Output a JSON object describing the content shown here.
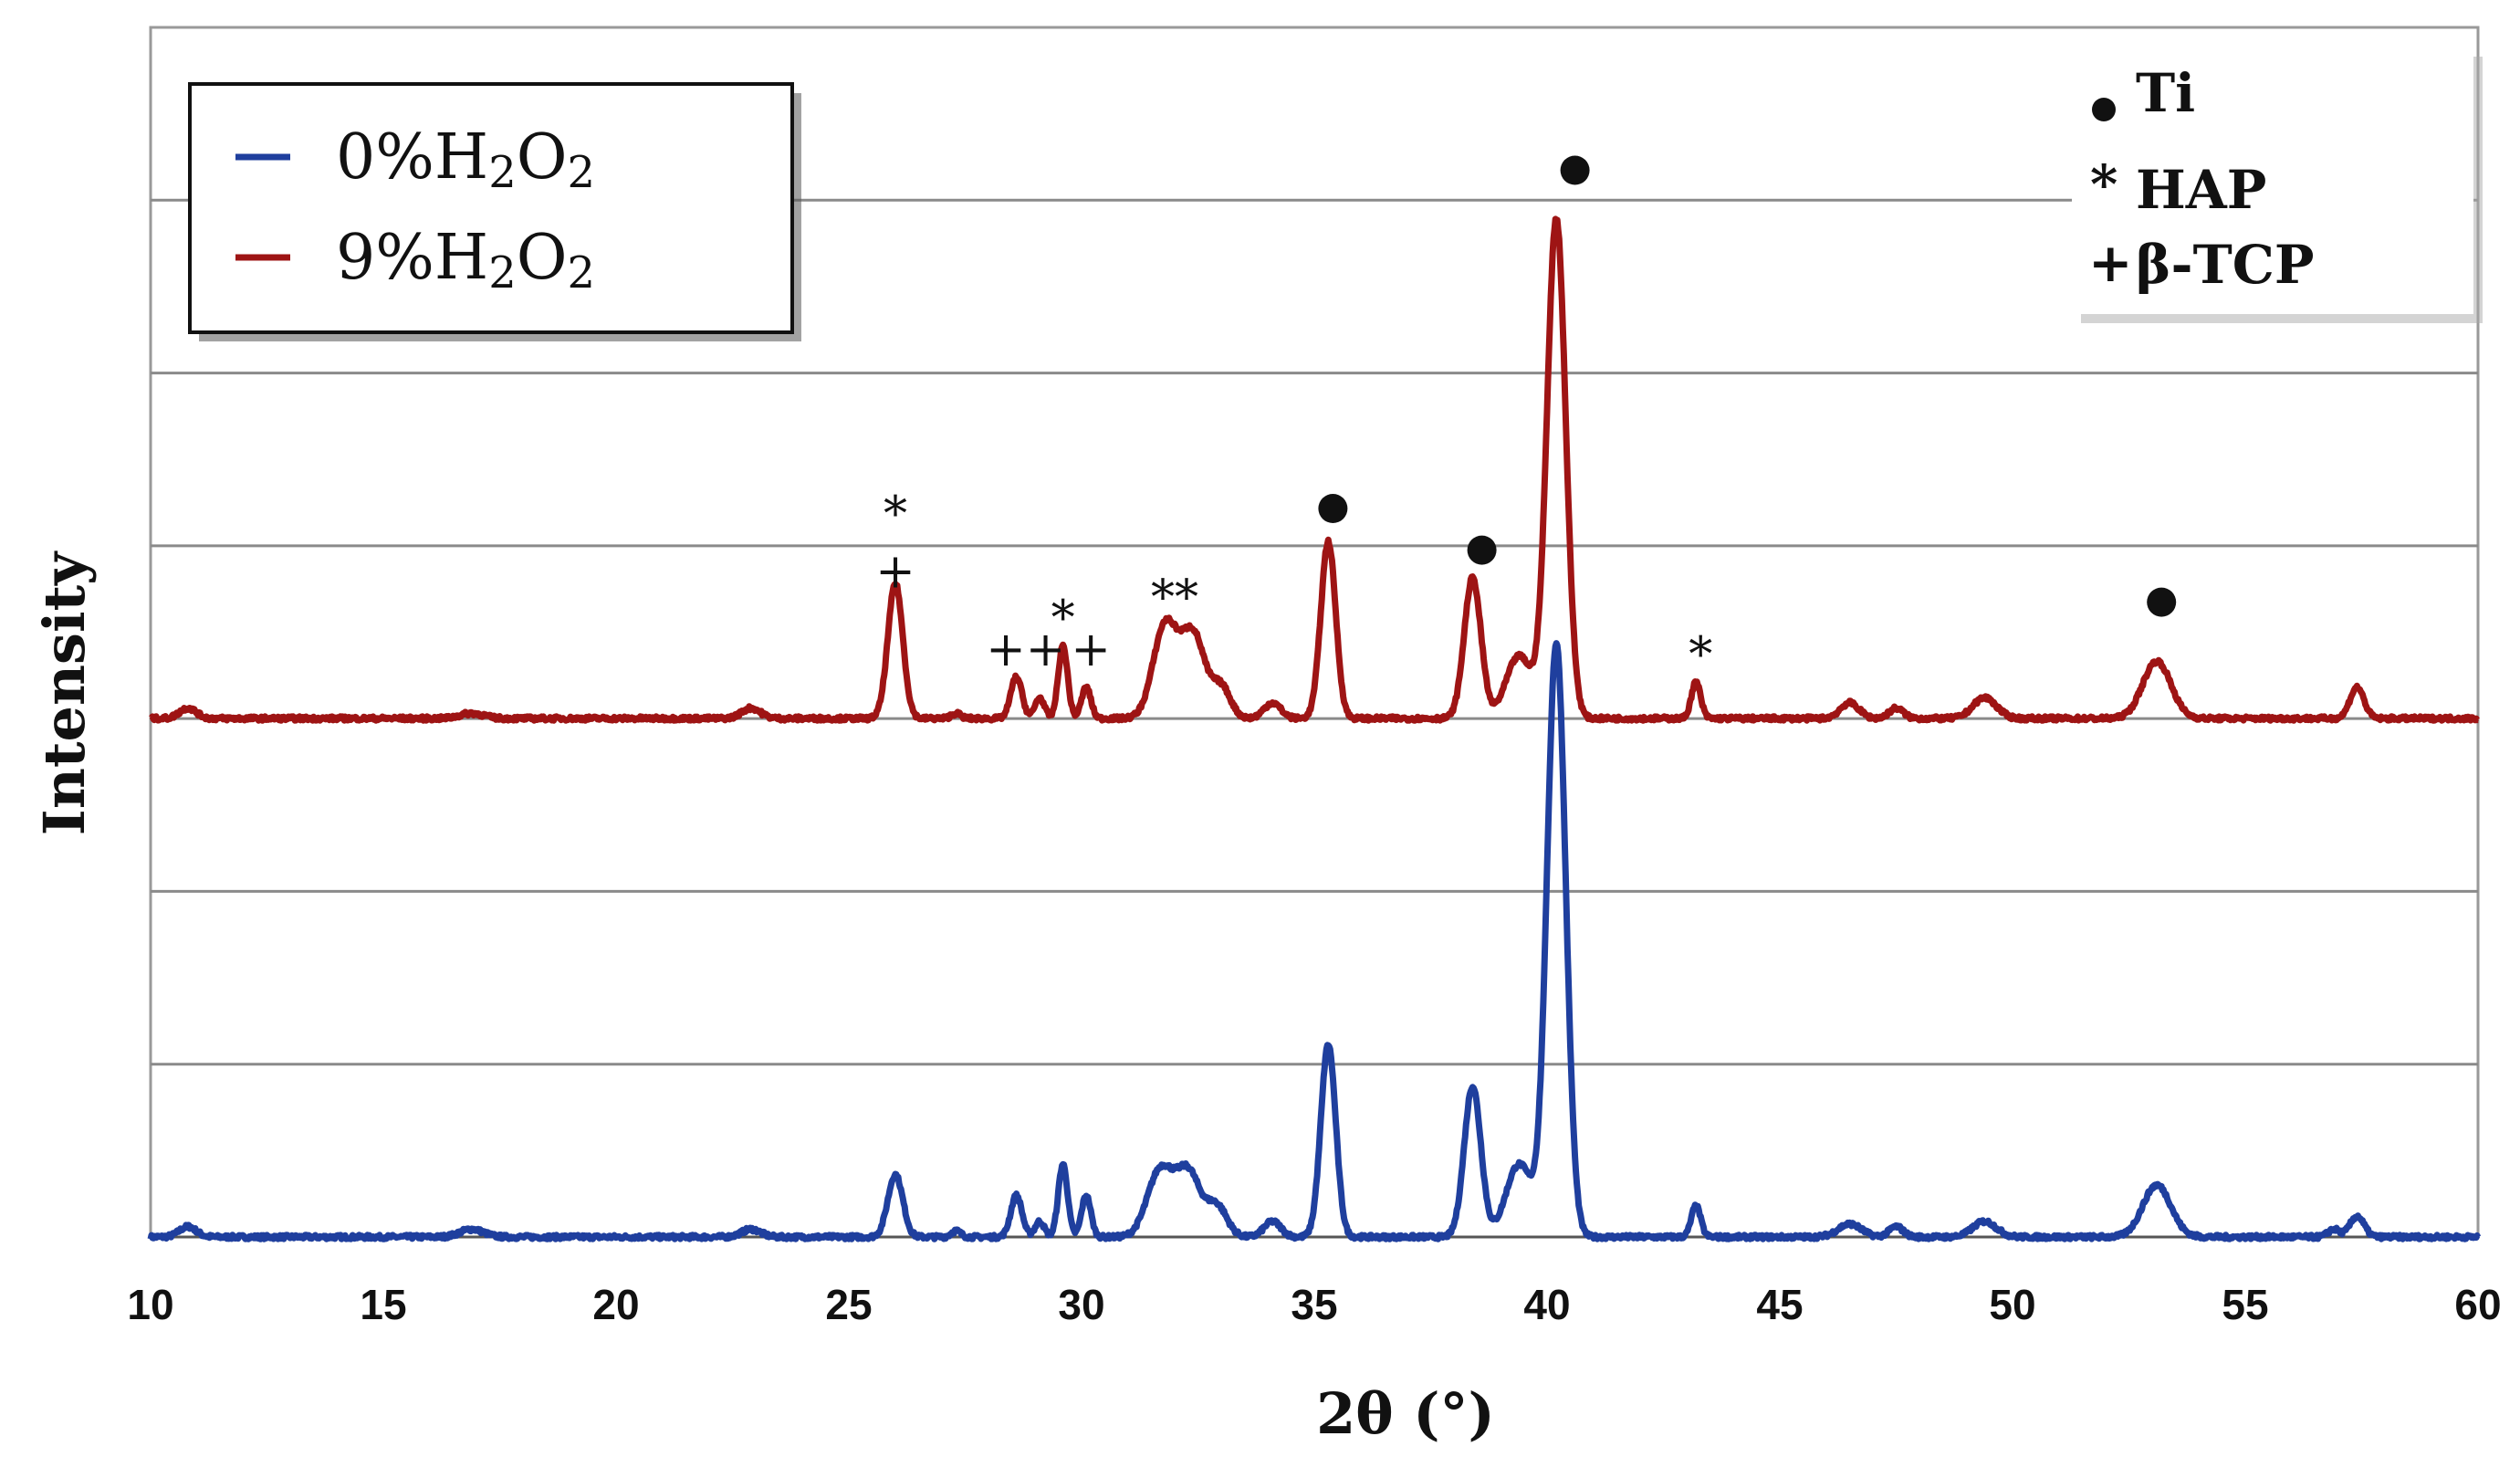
{
  "chart_data": {
    "type": "line",
    "xlabel": "2θ (°)",
    "ylabel": "Intensity",
    "xlim": [
      10,
      60
    ],
    "x_ticks": [
      "10",
      "15",
      "20",
      "25",
      "30",
      "35",
      "40",
      "45",
      "50",
      "55",
      "60"
    ],
    "grid": true,
    "legend_position": "top-left",
    "series": [
      {
        "name": "0%H2O2",
        "legend_main": "0%H",
        "legend_sub1": "2",
        "legend_mid": "O",
        "legend_sub2": "2",
        "color": "#1f3f9e",
        "baseline": 0,
        "peaks": [
          [
            10.8,
            0.02,
            0.18
          ],
          [
            16.9,
            0.015,
            0.25
          ],
          [
            22.9,
            0.015,
            0.2
          ],
          [
            26.0,
            0.12,
            0.16
          ],
          [
            27.3,
            0.012,
            0.1
          ],
          [
            28.6,
            0.08,
            0.12
          ],
          [
            29.1,
            0.03,
            0.1
          ],
          [
            29.6,
            0.14,
            0.1
          ],
          [
            30.1,
            0.08,
            0.1
          ],
          [
            31.7,
            0.13,
            0.28
          ],
          [
            32.3,
            0.12,
            0.25
          ],
          [
            32.9,
            0.06,
            0.22
          ],
          [
            34.1,
            0.03,
            0.18
          ],
          [
            35.3,
            0.37,
            0.16
          ],
          [
            38.4,
            0.29,
            0.18
          ],
          [
            39.4,
            0.14,
            0.28
          ],
          [
            40.2,
            1.14,
            0.2
          ],
          [
            43.2,
            0.06,
            0.1
          ],
          [
            46.5,
            0.025,
            0.25
          ],
          [
            47.5,
            0.02,
            0.15
          ],
          [
            49.4,
            0.03,
            0.25
          ],
          [
            53.1,
            0.1,
            0.3
          ],
          [
            56.9,
            0.015,
            0.12
          ],
          [
            57.4,
            0.04,
            0.15
          ]
        ]
      },
      {
        "name": "9%H2O2",
        "legend_main": "9%H",
        "legend_sub1": "2",
        "legend_mid": "O",
        "legend_sub2": "2",
        "color": "#9e1414",
        "baseline": 1,
        "peaks": [
          [
            10.8,
            0.02,
            0.18
          ],
          [
            16.9,
            0.01,
            0.25
          ],
          [
            22.9,
            0.02,
            0.2
          ],
          [
            26.0,
            0.26,
            0.16
          ],
          [
            27.3,
            0.01,
            0.1
          ],
          [
            28.6,
            0.08,
            0.12
          ],
          [
            29.1,
            0.04,
            0.1
          ],
          [
            29.6,
            0.14,
            0.1
          ],
          [
            30.1,
            0.06,
            0.1
          ],
          [
            31.8,
            0.18,
            0.26
          ],
          [
            32.4,
            0.16,
            0.25
          ],
          [
            33.0,
            0.06,
            0.2
          ],
          [
            34.1,
            0.03,
            0.18
          ],
          [
            35.3,
            0.34,
            0.16
          ],
          [
            38.4,
            0.27,
            0.18
          ],
          [
            39.4,
            0.12,
            0.28
          ],
          [
            40.2,
            0.96,
            0.2
          ],
          [
            43.2,
            0.07,
            0.1
          ],
          [
            46.5,
            0.03,
            0.2
          ],
          [
            47.5,
            0.02,
            0.15
          ],
          [
            49.4,
            0.04,
            0.25
          ],
          [
            53.1,
            0.11,
            0.3
          ],
          [
            57.4,
            0.06,
            0.15
          ]
        ]
      }
    ],
    "phase_legend": [
      {
        "symbol": "●",
        "label": "Ti"
      },
      {
        "symbol": "*",
        "label": "HAP"
      },
      {
        "symbol": "+",
        "label": "β-TCP"
      }
    ],
    "annotations": [
      {
        "x": 26.0,
        "level": 1.39,
        "text": "*"
      },
      {
        "x": 26.0,
        "level": 1.28,
        "text": "+"
      },
      {
        "x": 28.8,
        "level": 1.13,
        "text": "++"
      },
      {
        "x": 29.6,
        "level": 1.19,
        "text": "*"
      },
      {
        "x": 30.2,
        "level": 1.13,
        "text": "+"
      },
      {
        "x": 32.0,
        "level": 1.23,
        "text": "**"
      },
      {
        "x": 35.4,
        "level": 1.4,
        "text": "●"
      },
      {
        "x": 38.6,
        "level": 1.32,
        "text": "●"
      },
      {
        "x": 40.6,
        "level": 2.05,
        "text": "●"
      },
      {
        "x": 43.3,
        "level": 1.12,
        "text": "*"
      },
      {
        "x": 53.2,
        "level": 1.22,
        "text": "●"
      }
    ]
  }
}
